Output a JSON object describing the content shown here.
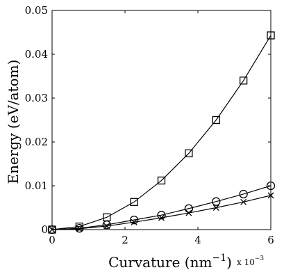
{
  "chart_data": {
    "type": "line",
    "title": "",
    "xlabel": "Curvature (nm",
    "xlabel_sup": "−1",
    "xlabel_close": ")",
    "ylabel": "Energy (eV/atom)",
    "x_multiplier_base": "x 10",
    "x_multiplier_exp": "−3",
    "xlim": [
      0,
      6
    ],
    "ylim": [
      0,
      0.05
    ],
    "x_ticks": [
      0,
      2,
      4,
      6
    ],
    "x_tick_labels": [
      "0",
      "2",
      "4",
      "6"
    ],
    "y_ticks": [
      0.01,
      0.02,
      0.03,
      0.04,
      0.05
    ],
    "y_tick_labels": [
      "0.01",
      "0.02",
      "0.03",
      "0.04",
      "0.05"
    ],
    "origin_label": "0",
    "grid": false,
    "legend": "none",
    "x": [
      0,
      0.75,
      1.5,
      2.25,
      3.0,
      3.75,
      4.5,
      5.25,
      6.0
    ],
    "series": [
      {
        "marker": "square",
        "values": [
          0,
          0.0007,
          0.0028,
          0.0063,
          0.0112,
          0.0174,
          0.025,
          0.034,
          0.0443
        ]
      },
      {
        "marker": "circle",
        "values": [
          0,
          0.0003,
          0.0011,
          0.0022,
          0.0033,
          0.0048,
          0.0064,
          0.0081,
          0.01
        ]
      },
      {
        "marker": "cross",
        "values": [
          0,
          0.0002,
          0.0008,
          0.0017,
          0.0027,
          0.0038,
          0.005,
          0.0063,
          0.0078
        ]
      }
    ],
    "colors": {
      "line": "#000000",
      "marker": "#000000",
      "background": "#ffffff"
    }
  }
}
